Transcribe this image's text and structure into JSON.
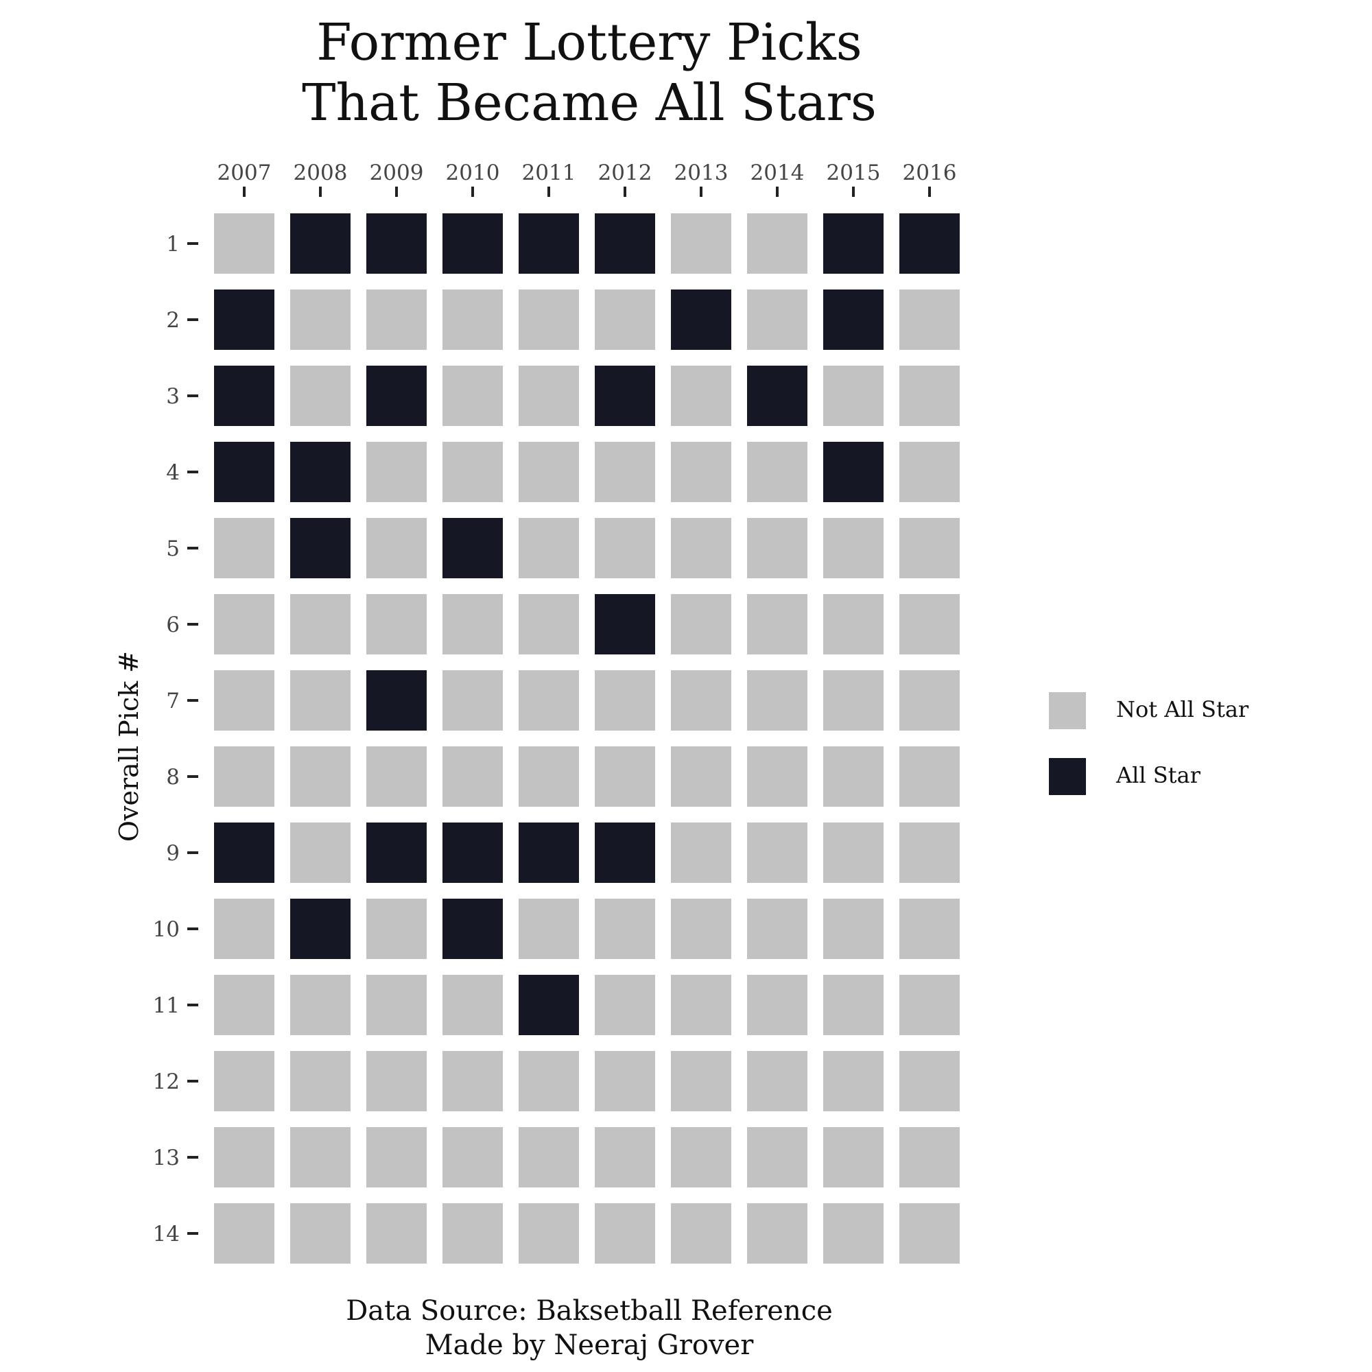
{
  "title": [
    "Former Lottery Picks",
    "That Became All Stars"
  ],
  "caption": [
    "Data Source: Baksetball Reference",
    "Made by Neeraj Grover"
  ],
  "chart_data": {
    "type": "heatmap",
    "title": "Former Lottery Picks That Became All Stars",
    "xlabel": "",
    "ylabel": "Overall Pick #",
    "x_position": "top",
    "x_categories": [
      "2007",
      "2008",
      "2009",
      "2010",
      "2011",
      "2012",
      "2013",
      "2014",
      "2015",
      "2016"
    ],
    "y_categories": [
      "1",
      "2",
      "3",
      "4",
      "5",
      "6",
      "7",
      "8",
      "9",
      "10",
      "11",
      "12",
      "13",
      "14"
    ],
    "values_note_scale": "1 = All Star, 0 = Not All Star",
    "values": [
      [
        0,
        1,
        1,
        1,
        1,
        1,
        0,
        0,
        1,
        1
      ],
      [
        1,
        0,
        0,
        0,
        0,
        0,
        1,
        0,
        1,
        0
      ],
      [
        1,
        0,
        1,
        0,
        0,
        1,
        0,
        1,
        0,
        0
      ],
      [
        1,
        1,
        0,
        0,
        0,
        0,
        0,
        0,
        1,
        0
      ],
      [
        0,
        1,
        0,
        1,
        0,
        0,
        0,
        0,
        0,
        0
      ],
      [
        0,
        0,
        0,
        0,
        0,
        1,
        0,
        0,
        0,
        0
      ],
      [
        0,
        0,
        1,
        0,
        0,
        0,
        0,
        0,
        0,
        0
      ],
      [
        0,
        0,
        0,
        0,
        0,
        0,
        0,
        0,
        0,
        0
      ],
      [
        1,
        0,
        1,
        1,
        1,
        1,
        0,
        0,
        0,
        0
      ],
      [
        0,
        1,
        0,
        1,
        0,
        0,
        0,
        0,
        0,
        0
      ],
      [
        0,
        0,
        0,
        0,
        1,
        0,
        0,
        0,
        0,
        0
      ],
      [
        0,
        0,
        0,
        0,
        0,
        0,
        0,
        0,
        0,
        0
      ],
      [
        0,
        0,
        0,
        0,
        0,
        0,
        0,
        0,
        0,
        0
      ],
      [
        0,
        0,
        0,
        0,
        0,
        0,
        0,
        0,
        0,
        0
      ]
    ],
    "legend": {
      "placement": "right",
      "items": [
        {
          "label": "Not All Star",
          "value": 0,
          "color": "#c2c2c2"
        },
        {
          "label": "All Star",
          "value": 1,
          "color": "#151724"
        }
      ]
    },
    "grid": false
  }
}
